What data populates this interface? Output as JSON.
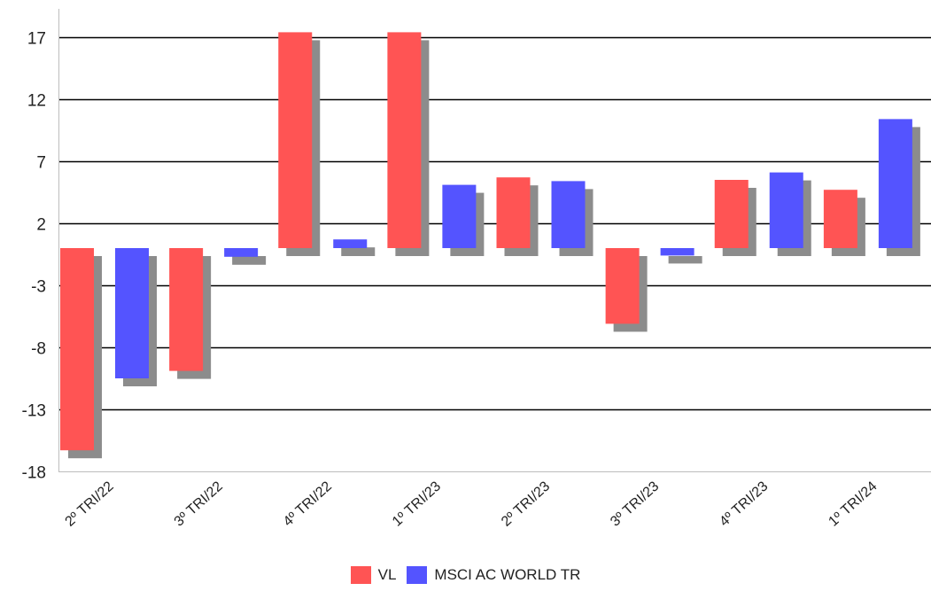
{
  "chart_data": {
    "type": "bar",
    "categories": [
      "2º TRI/22",
      "3º TRI/22",
      "4º TRI/22",
      "1º TRI/23",
      "2º TRI/23",
      "3º TRI/23",
      "4º TRI/23",
      "1º TRI/24"
    ],
    "series": [
      {
        "name": "VL",
        "color": "#ff5454",
        "values": [
          -16.3,
          -9.9,
          17.4,
          17.4,
          5.7,
          -6.1,
          5.5,
          4.7
        ]
      },
      {
        "name": "MSCI AC WORLD TR",
        "color": "#5454ff",
        "values": [
          -10.5,
          -0.7,
          0.7,
          5.1,
          5.4,
          -0.6,
          6.1,
          10.4
        ]
      }
    ],
    "yticks": [
      17,
      12,
      7,
      2,
      -3,
      -8,
      -13,
      -18
    ],
    "ylim": [
      -18,
      19
    ],
    "shadow_color": "#8c8c8c",
    "grid": true,
    "legend_position": "bottom",
    "title": "",
    "xlabel": "",
    "ylabel": ""
  }
}
